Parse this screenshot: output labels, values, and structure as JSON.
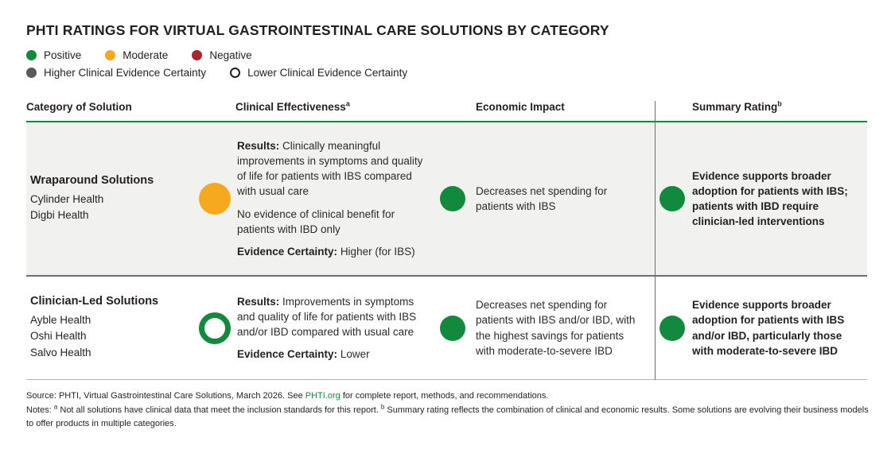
{
  "title": "PHTI RATINGS FOR VIRTUAL GASTROINTESTINAL CARE SOLUTIONS BY CATEGORY",
  "colors": {
    "positive": "#128a3d",
    "moderate": "#f6a81f",
    "negative": "#a8232b",
    "higher_certainty_gray": "#58595b",
    "row_alt_background": "#f1f1ef",
    "header_rule_green": "#128a3d"
  },
  "legend": {
    "ratings": [
      {
        "label": "Positive",
        "rating": "positive",
        "style": "filled"
      },
      {
        "label": "Moderate",
        "rating": "moderate",
        "style": "filled"
      },
      {
        "label": "Negative",
        "rating": "negative",
        "style": "filled"
      }
    ],
    "certainty": [
      {
        "label": "Higher Clinical Evidence Certainty",
        "rating": "higher",
        "style": "filled"
      },
      {
        "label": "Lower Clinical Evidence Certainty",
        "rating": "lower",
        "style": "hollow"
      }
    ]
  },
  "table": {
    "columns": [
      {
        "label": "Category of Solution",
        "sup": ""
      },
      {
        "label": "Clinical Effectiveness",
        "sup": "a"
      },
      {
        "label": "Economic Impact",
        "sup": ""
      },
      {
        "label": "Summary Rating",
        "sup": "b"
      }
    ],
    "rows": [
      {
        "category": "Wraparound Solutions",
        "companies": [
          "Cylinder Health",
          "Digbi Health"
        ],
        "clinical": {
          "rating": "moderate",
          "certainty_style": "filled",
          "paragraphs": [
            {
              "lead": "Results:",
              "text": "Clinically meaningful improvements in symptoms and quality of life for patients with IBS compared with usual care"
            },
            {
              "lead": "",
              "text": "No evidence of clinical benefit for patients with IBD only"
            },
            {
              "lead": "Evidence Certainty:",
              "text": "Higher (for IBS)"
            }
          ]
        },
        "economic": {
          "rating": "positive",
          "certainty_style": "filled",
          "text": "Decreases net spending for patients with IBS"
        },
        "summary": {
          "rating": "positive",
          "certainty_style": "filled",
          "text": "Evidence supports broader adoption for patients with IBS; patients with IBD require clinician-led interventions"
        }
      },
      {
        "category": "Clinician-Led Solutions",
        "companies": [
          "Ayble Health",
          "Oshi Health",
          "Salvo Health"
        ],
        "clinical": {
          "rating": "positive",
          "certainty_style": "hollow",
          "paragraphs": [
            {
              "lead": "Results:",
              "text": "Improvements in symptoms and quality of life for patients with IBS and/or IBD compared with usual care"
            },
            {
              "lead": "Evidence Certainty:",
              "text": "Lower"
            }
          ]
        },
        "economic": {
          "rating": "positive",
          "certainty_style": "filled",
          "text": "Decreases net spending for patients with IBS and/or IBD, with the highest savings for patients with moderate-to-severe IBD"
        },
        "summary": {
          "rating": "positive",
          "certainty_style": "filled",
          "text": "Evidence supports broader adoption for patients with IBS and/or IBD, particularly those with moderate-to-severe IBD"
        }
      }
    ]
  },
  "footer": {
    "source_prefix": "Source: PHTI, Virtual Gastrointestinal Care Solutions, March 2026. See ",
    "source_link": "PHTI.org",
    "source_suffix": " for complete report, methods, and recommendations.",
    "notes_label": "Notes: ",
    "note_a_sup": "a",
    "note_a_text": " Not all solutions have clinical data that meet the inclusion standards for this report. ",
    "note_b_sup": "b",
    "note_b_text": " Summary rating reflects the combination of clinical and economic results. Some solutions are evolving their business models to offer products in multiple categories."
  }
}
